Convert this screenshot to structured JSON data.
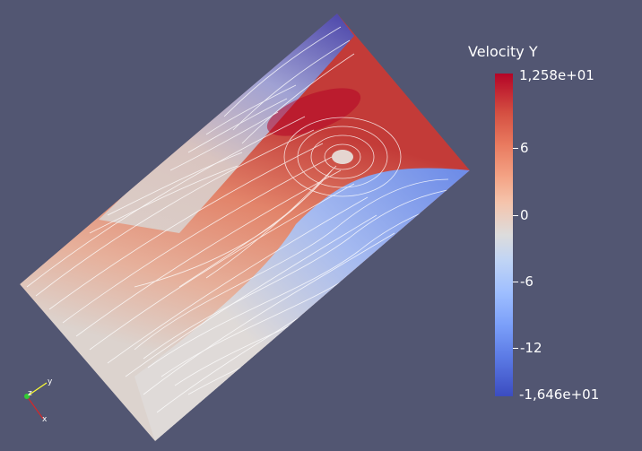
{
  "legend": {
    "title": "Velocity Y",
    "max_label": "1,258e+01",
    "min_label": "-1,646e+01",
    "ticks": [
      {
        "label": "6",
        "value": 6
      },
      {
        "label": "0",
        "value": 0
      },
      {
        "label": "-6",
        "value": -6
      },
      {
        "label": "-12",
        "value": -12
      }
    ],
    "range": [
      -16.46,
      12.58
    ],
    "colors": [
      "#3b4cc0",
      "#dddcdc",
      "#b40426"
    ]
  },
  "axes": {
    "x_label": "x",
    "y_label": "y",
    "z_label": "z",
    "x_color": "#d62728",
    "y_color": "#ffff33",
    "z_color": "#33cc33"
  },
  "background_color": "#525672",
  "streamline_color": "#ffffff"
}
